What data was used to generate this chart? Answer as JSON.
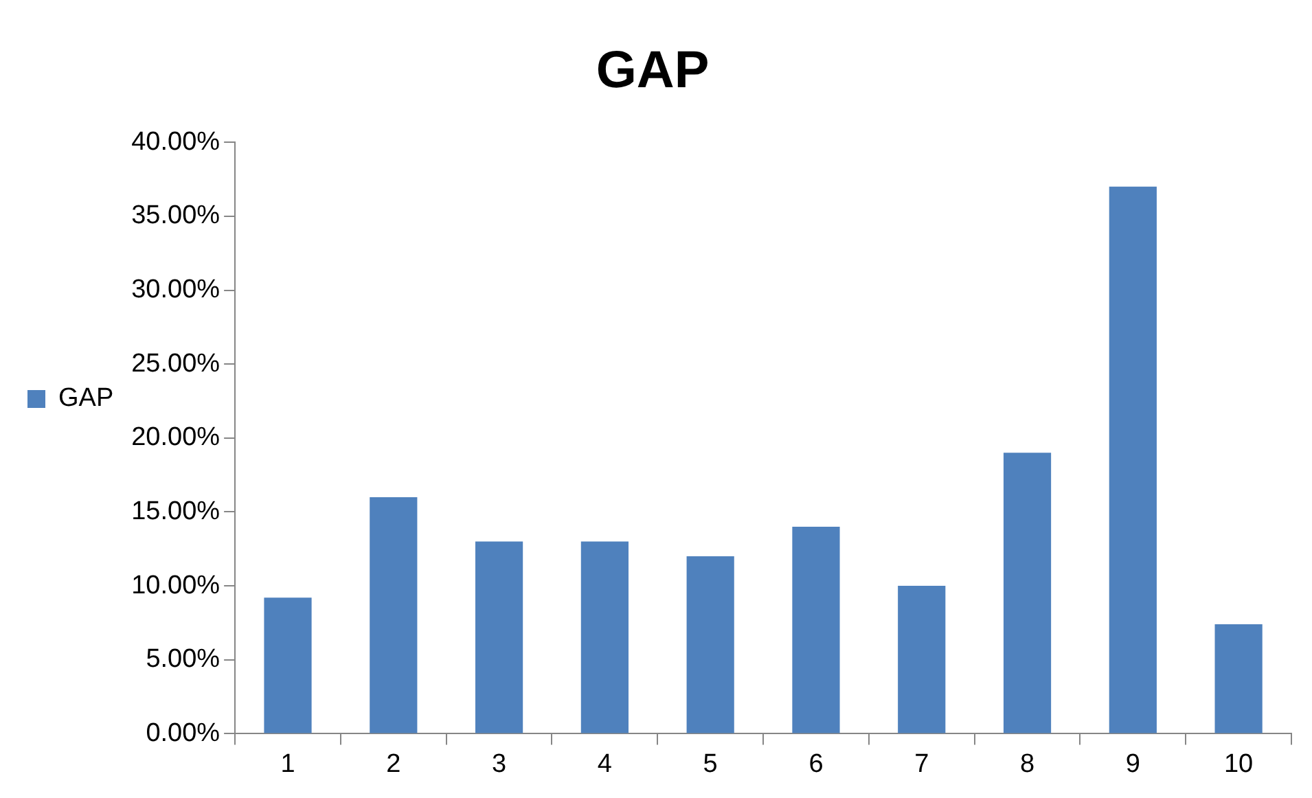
{
  "chart_data": {
    "type": "bar",
    "title": "GAP",
    "categories": [
      "1",
      "2",
      "3",
      "4",
      "5",
      "6",
      "7",
      "8",
      "9",
      "10"
    ],
    "series": [
      {
        "name": "GAP",
        "color": "#4f81bd",
        "values": [
          9.2,
          16,
          13,
          13,
          12,
          14,
          10,
          19,
          37,
          7.4
        ]
      }
    ],
    "ylim": [
      0,
      40
    ],
    "yticks": [
      {
        "value": 0,
        "label": "0.00%"
      },
      {
        "value": 5,
        "label": "5.00%"
      },
      {
        "value": 10,
        "label": "10.00%"
      },
      {
        "value": 15,
        "label": "15.00%"
      },
      {
        "value": 20,
        "label": "20.00%"
      },
      {
        "value": 25,
        "label": "25.00%"
      },
      {
        "value": 30,
        "label": "30.00%"
      },
      {
        "value": 35,
        "label": "35.00%"
      },
      {
        "value": 40,
        "label": "40.00%"
      }
    ],
    "grid": false,
    "legend": "left"
  }
}
